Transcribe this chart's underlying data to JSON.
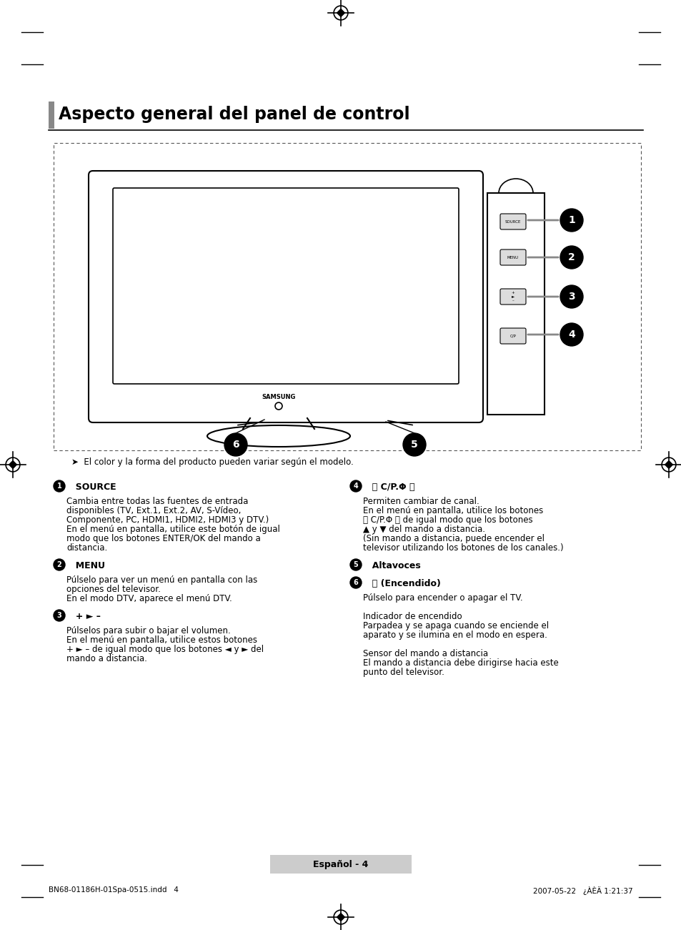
{
  "title": "Aspecto general del panel de control",
  "page_bg": "#ffffff",
  "title_fontsize": 16,
  "body_fontsize": 8.5,
  "header_note": "El color y la forma del producto pueden variar según el modelo.",
  "items": [
    {
      "num": "1",
      "heading": "SOURCE",
      "heading_extra": "",
      "body": "Cambia entre todas las fuentes de entrada\ndisponibles (TV, Ext.1, Ext.2, AV, S-Vídeo,\nComponente, PC, HDMI1, HDMI2, HDMI3 y DTV.)\nEn el menú en pantalla, utilice este botón de igual\nmodo que los botones ENTER/OK del mando a\ndistancia."
    },
    {
      "num": "2",
      "heading": "MENU",
      "heading_extra": "",
      "body": "Púlselo para ver un menú en pantalla con las\nopciones del televisor.\nEn el modo DTV, aparece el menú DTV."
    },
    {
      "num": "3",
      "heading": "+ ► –",
      "heading_extra": "",
      "body": "Púlselos para subir o bajar el volumen.\nEn el menú en pantalla, utilice estos botones\n+ ► – de igual modo que los botones ◄ y ► del\nmando a distancia."
    },
    {
      "num": "4",
      "heading": "〈 C/P.Φ 〉",
      "heading_extra": "",
      "body": "Permiten cambiar de canal.\nEn el menú en pantalla, utilice los botones\n〈 C/P.Φ 〉 de igual modo que los botones\n▲ y ▼ del mando a distancia.\n(Sin mando a distancia, puede encender el\ntelevisor utilizando los botones de los canales.)"
    },
    {
      "num": "5",
      "heading": "Altavoces",
      "heading_extra": "",
      "body": ""
    },
    {
      "num": "6",
      "heading": "⏻ (Encendido)",
      "heading_extra": "",
      "body": "Púlselo para encender o apagar el TV.\n\nIndicador de encendido\nParpadea y se apaga cuando se enciende el\naparato y se ilumina en el modo en espera.\n\nSensor del mando a distancia\nEl mando a distancia debe dirigirse hacia este\npunto del televisor."
    }
  ],
  "footer_label": "Español - 4",
  "footer_file": "BN68-01186H-01Spa-0515.indd   4",
  "footer_date": "2007-05-22   ¿ÀÈÄ 1:21:37"
}
